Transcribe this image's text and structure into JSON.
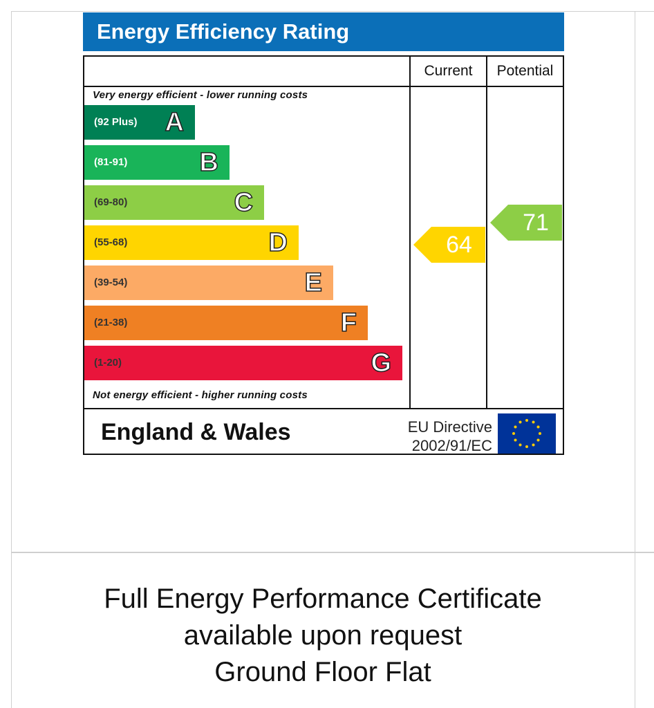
{
  "epc": {
    "title": "Energy Efficiency Rating",
    "header_color": "#0b6fb8",
    "columns": {
      "current": "Current",
      "potential": "Potential"
    },
    "top_caption": "Very energy efficient - lower running costs",
    "bottom_caption": "Not energy efficient - higher running costs",
    "bands": [
      {
        "range": "(92 Plus)",
        "letter": "A",
        "color": "#008054"
      },
      {
        "range": "(81-91)",
        "letter": "B",
        "color": "#19b459"
      },
      {
        "range": "(69-80)",
        "letter": "C",
        "color": "#8dce46"
      },
      {
        "range": "(55-68)",
        "letter": "D",
        "color": "#ffd500"
      },
      {
        "range": "(39-54)",
        "letter": "E",
        "color": "#fcaa65"
      },
      {
        "range": "(21-38)",
        "letter": "F",
        "color": "#ef8023"
      },
      {
        "range": "(1-20)",
        "letter": "G",
        "color": "#e9153b"
      }
    ],
    "current": {
      "value": "64",
      "band": "D",
      "color": "#ffd500"
    },
    "potential": {
      "value": "71",
      "band": "C",
      "color": "#8dce46"
    },
    "region": "England & Wales",
    "directive": [
      "EU Directive",
      "2002/91/EC"
    ],
    "eu_flag_icon": "eu-flag-icon"
  },
  "certificate": {
    "lines": [
      "Full Energy Performance Certificate",
      "available upon request",
      "Ground Floor Flat"
    ]
  }
}
